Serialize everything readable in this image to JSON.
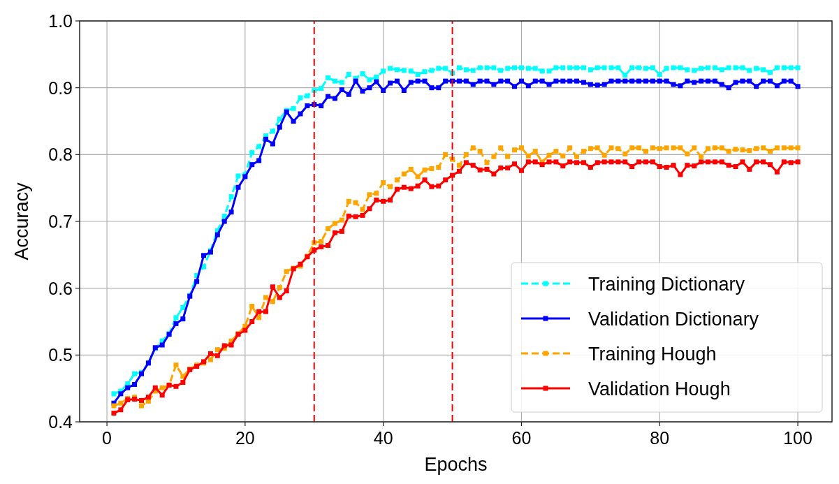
{
  "chart_data": {
    "type": "line",
    "xlabel": "Epochs",
    "ylabel": "Accuracy",
    "x": [
      1,
      2,
      3,
      4,
      5,
      6,
      7,
      8,
      9,
      10,
      11,
      12,
      13,
      14,
      15,
      16,
      17,
      18,
      19,
      20,
      21,
      22,
      23,
      24,
      25,
      26,
      27,
      28,
      29,
      30,
      31,
      32,
      33,
      34,
      35,
      36,
      37,
      38,
      39,
      40,
      41,
      42,
      43,
      44,
      45,
      46,
      47,
      48,
      49,
      50,
      51,
      52,
      53,
      54,
      55,
      56,
      57,
      58,
      59,
      60,
      61,
      62,
      63,
      64,
      65,
      66,
      67,
      68,
      69,
      70,
      71,
      72,
      73,
      74,
      75,
      76,
      77,
      78,
      79,
      80,
      81,
      82,
      83,
      84,
      85,
      86,
      87,
      88,
      89,
      90,
      91,
      92,
      93,
      94,
      95,
      96,
      97,
      98,
      99,
      100
    ],
    "xlim": [
      -3.95,
      104.95
    ],
    "xticks": [
      0,
      20,
      40,
      60,
      80,
      100
    ],
    "ylim": [
      0.4,
      1.0
    ],
    "yticks": [
      0.4,
      0.5,
      0.6,
      0.7,
      0.8,
      0.9,
      {
        "value": 1,
        "label": "1.0"
      }
    ],
    "grid": true,
    "legend": "bottom right",
    "marker": "square",
    "ref_lines": [
      {
        "axis": "x",
        "value": 30,
        "color": "#ff0000",
        "line_style": "dashed"
      },
      {
        "axis": "x",
        "value": 50,
        "color": "#ff0000",
        "line_style": "dashed"
      }
    ],
    "series": [
      {
        "name": "Training Dictionary",
        "color": "#00ffff",
        "line_style": "dashed",
        "values": [
          0.442,
          0.446,
          0.457,
          0.472,
          0.474,
          0.488,
          0.51,
          0.521,
          0.532,
          0.556,
          0.571,
          0.589,
          0.619,
          0.632,
          0.656,
          0.686,
          0.708,
          0.737,
          0.768,
          0.77,
          0.803,
          0.812,
          0.828,
          0.835,
          0.853,
          0.866,
          0.869,
          0.885,
          0.888,
          0.896,
          0.899,
          0.915,
          0.91,
          0.908,
          0.92,
          0.914,
          0.921,
          0.912,
          0.916,
          0.925,
          0.929,
          0.927,
          0.926,
          0.925,
          0.92,
          0.924,
          0.926,
          0.929,
          0.929,
          0.922,
          0.93,
          0.927,
          0.926,
          0.93,
          0.93,
          0.93,
          0.926,
          0.929,
          0.93,
          0.93,
          0.929,
          0.929,
          0.925,
          0.925,
          0.93,
          0.93,
          0.93,
          0.93,
          0.93,
          0.927,
          0.93,
          0.93,
          0.93,
          0.93,
          0.919,
          0.93,
          0.93,
          0.929,
          0.93,
          0.92,
          0.929,
          0.93,
          0.93,
          0.927,
          0.926,
          0.929,
          0.93,
          0.93,
          0.927,
          0.93,
          0.93,
          0.93,
          0.926,
          0.929,
          0.927,
          0.923,
          0.93,
          0.93,
          0.93,
          0.93
        ]
      },
      {
        "name": "Validation Dictionary",
        "color": "#0000ff",
        "line_style": "solid",
        "values": [
          0.428,
          0.442,
          0.451,
          0.456,
          0.472,
          0.488,
          0.511,
          0.515,
          0.531,
          0.547,
          0.554,
          0.588,
          0.61,
          0.649,
          0.654,
          0.68,
          0.7,
          0.714,
          0.751,
          0.767,
          0.785,
          0.791,
          0.823,
          0.816,
          0.841,
          0.864,
          0.85,
          0.861,
          0.873,
          0.875,
          0.873,
          0.887,
          0.884,
          0.897,
          0.89,
          0.91,
          0.895,
          0.9,
          0.909,
          0.896,
          0.907,
          0.91,
          0.896,
          0.908,
          0.91,
          0.91,
          0.9,
          0.9,
          0.91,
          0.91,
          0.91,
          0.91,
          0.905,
          0.91,
          0.91,
          0.905,
          0.91,
          0.91,
          0.902,
          0.91,
          0.903,
          0.91,
          0.91,
          0.905,
          0.91,
          0.91,
          0.91,
          0.91,
          0.908,
          0.905,
          0.904,
          0.905,
          0.91,
          0.91,
          0.91,
          0.91,
          0.91,
          0.91,
          0.91,
          0.91,
          0.91,
          0.905,
          0.903,
          0.91,
          0.908,
          0.91,
          0.91,
          0.91,
          0.905,
          0.9,
          0.908,
          0.91,
          0.91,
          0.902,
          0.91,
          0.91,
          0.903,
          0.91,
          0.91,
          0.902
        ]
      },
      {
        "name": "Training Hough",
        "color": "#ffa500",
        "line_style": "dashed",
        "values": [
          0.424,
          0.428,
          0.435,
          0.437,
          0.424,
          0.431,
          0.446,
          0.451,
          0.455,
          0.485,
          0.468,
          0.479,
          0.485,
          0.488,
          0.493,
          0.508,
          0.51,
          0.521,
          0.532,
          0.543,
          0.573,
          0.556,
          0.586,
          0.58,
          0.601,
          0.625,
          0.63,
          0.633,
          0.648,
          0.668,
          0.67,
          0.689,
          0.697,
          0.702,
          0.73,
          0.728,
          0.718,
          0.74,
          0.742,
          0.758,
          0.752,
          0.762,
          0.771,
          0.778,
          0.767,
          0.777,
          0.779,
          0.781,
          0.8,
          0.793,
          0.784,
          0.8,
          0.81,
          0.805,
          0.788,
          0.797,
          0.81,
          0.797,
          0.807,
          0.81,
          0.798,
          0.805,
          0.789,
          0.799,
          0.805,
          0.798,
          0.81,
          0.797,
          0.805,
          0.809,
          0.81,
          0.799,
          0.81,
          0.809,
          0.801,
          0.81,
          0.81,
          0.805,
          0.81,
          0.809,
          0.81,
          0.81,
          0.81,
          0.801,
          0.81,
          0.797,
          0.809,
          0.81,
          0.81,
          0.805,
          0.808,
          0.807,
          0.806,
          0.809,
          0.81,
          0.805,
          0.81,
          0.81,
          0.81,
          0.81
        ]
      },
      {
        "name": "Validation Hough",
        "color": "#ff0000",
        "line_style": "solid",
        "values": [
          0.413,
          0.418,
          0.433,
          0.434,
          0.432,
          0.437,
          0.451,
          0.44,
          0.455,
          0.453,
          0.459,
          0.478,
          0.483,
          0.49,
          0.502,
          0.499,
          0.514,
          0.515,
          0.531,
          0.537,
          0.55,
          0.565,
          0.565,
          0.602,
          0.586,
          0.596,
          0.629,
          0.636,
          0.647,
          0.657,
          0.662,
          0.664,
          0.683,
          0.685,
          0.708,
          0.707,
          0.709,
          0.719,
          0.732,
          0.73,
          0.732,
          0.748,
          0.751,
          0.749,
          0.753,
          0.762,
          0.752,
          0.753,
          0.762,
          0.769,
          0.775,
          0.788,
          0.784,
          0.777,
          0.778,
          0.771,
          0.78,
          0.78,
          0.786,
          0.776,
          0.789,
          0.789,
          0.785,
          0.789,
          0.789,
          0.783,
          0.789,
          0.788,
          0.788,
          0.781,
          0.788,
          0.789,
          0.789,
          0.789,
          0.789,
          0.782,
          0.789,
          0.789,
          0.789,
          0.782,
          0.781,
          0.784,
          0.77,
          0.784,
          0.783,
          0.789,
          0.789,
          0.789,
          0.789,
          0.784,
          0.782,
          0.789,
          0.778,
          0.789,
          0.789,
          0.785,
          0.774,
          0.789,
          0.788,
          0.789
        ]
      }
    ]
  }
}
